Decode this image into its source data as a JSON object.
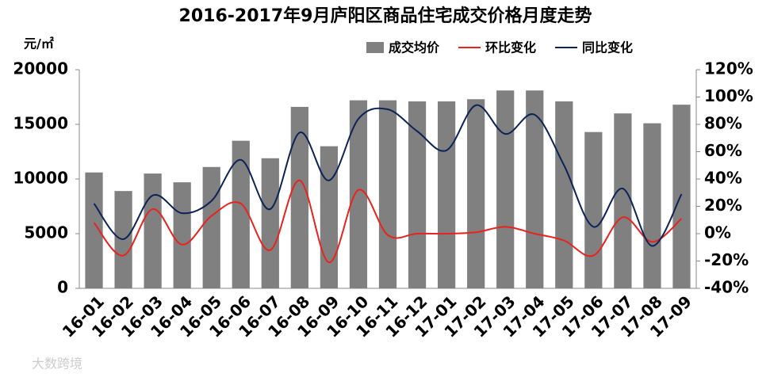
{
  "chart_data": {
    "type": "bar-line",
    "title": "2016-2017年9月庐阳区商品住宅成交价格月度走势",
    "y_label": "元/㎡",
    "watermark": "大数跨境",
    "categories": [
      "16-01",
      "16-02",
      "16-03",
      "16-04",
      "16-05",
      "16-06",
      "16-07",
      "16-08",
      "16-09",
      "16-10",
      "16-11",
      "16-12",
      "17-01",
      "17-02",
      "17-03",
      "17-04",
      "17-05",
      "17-06",
      "17-07",
      "17-08",
      "17-09"
    ],
    "series": [
      {
        "name": "成交均价",
        "type": "bar",
        "color": "#808080",
        "axis": "y",
        "values": [
          10600,
          8900,
          10500,
          9700,
          11100,
          13500,
          11900,
          16600,
          13000,
          17200,
          17200,
          17100,
          17100,
          17300,
          18100,
          18100,
          17100,
          14300,
          16000,
          15100,
          16800
        ]
      },
      {
        "name": "环比变化",
        "type": "line",
        "color": "#e8231e",
        "axis": "y2",
        "values": [
          8,
          -16,
          18,
          -8,
          13,
          22,
          -12,
          39,
          -21,
          32,
          -1,
          0,
          0,
          1,
          5,
          0,
          -5,
          -16,
          12,
          -6,
          11
        ]
      },
      {
        "name": "同比变化",
        "type": "line",
        "color": "#0c2356",
        "axis": "y2",
        "values": [
          22,
          -4,
          28,
          15,
          24,
          54,
          18,
          74,
          39,
          84,
          91,
          75,
          61,
          94,
          73,
          87,
          50,
          5,
          33,
          -9,
          29
        ]
      }
    ],
    "ylim": [
      0,
      20000
    ],
    "yticks": [
      0,
      5000,
      10000,
      15000,
      20000
    ],
    "y2lim": [
      -40,
      120
    ],
    "y2ticks": [
      {
        "value": -40,
        "label": "-40%"
      },
      {
        "value": -20,
        "label": "-20%"
      },
      {
        "value": 0,
        "label": "0%"
      },
      {
        "value": 20,
        "label": "20%"
      },
      {
        "value": 40,
        "label": "40%"
      },
      {
        "value": 60,
        "label": "60%"
      },
      {
        "value": 80,
        "label": "80%"
      },
      {
        "value": 100,
        "label": "100%"
      },
      {
        "value": 120,
        "label": "120%"
      }
    ],
    "grid": false,
    "smooth": true
  }
}
